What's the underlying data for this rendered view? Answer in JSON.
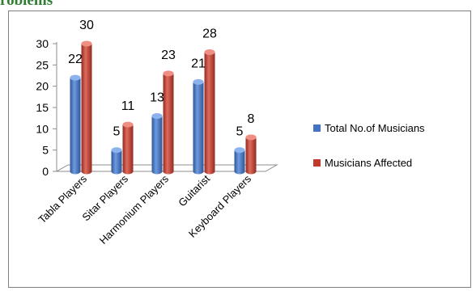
{
  "page": {
    "heading_fragment": "roblems"
  },
  "chart_data": {
    "type": "bar",
    "title": "",
    "xlabel": "",
    "ylabel": "",
    "categories": [
      "Tabla Players",
      "Sitar Players",
      "Harmonium Players",
      "Guitarist",
      "Keyboard Players"
    ],
    "series": [
      {
        "name": "Total No.of Musicians",
        "values": [
          22,
          5,
          13,
          21,
          5
        ],
        "color": "#4472c4"
      },
      {
        "name": "Musicians Affected",
        "values": [
          30,
          11,
          23,
          28,
          8
        ],
        "color": "#c0392b"
      }
    ],
    "ylim": [
      0,
      30
    ],
    "yticks": [
      0,
      5,
      10,
      15,
      20,
      25,
      30
    ],
    "grid": false,
    "legend": "right",
    "style": "3d-cylinder"
  }
}
